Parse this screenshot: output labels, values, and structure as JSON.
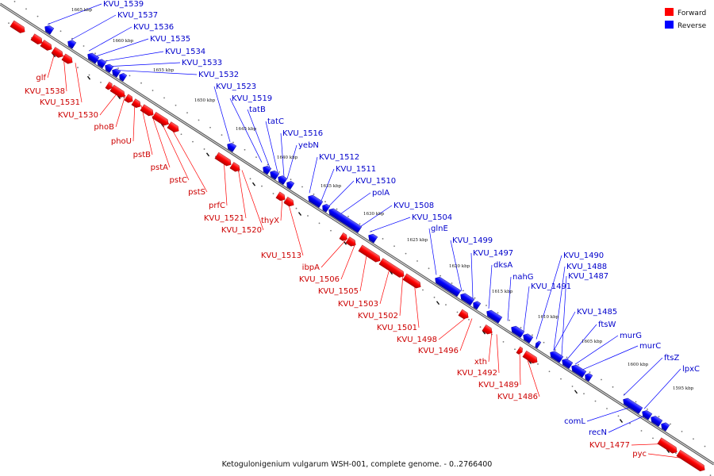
{
  "caption": "Ketogulonigenium vulgarum WSH-001, complete genome. - 0..2766400",
  "legend": [
    {
      "label": "Forward",
      "color": "#ff0000"
    },
    {
      "label": "Reverse",
      "color": "#0000ff"
    }
  ],
  "colors": {
    "forward": "#ff0000",
    "reverse": "#0000ff",
    "forward_label": "#cc0000",
    "reverse_label": "#0000cc",
    "backbone": "#888888"
  },
  "scale_ticks": [
    "1665 kbp",
    "1660 kbp",
    "1655 kbp",
    "1650 kbp",
    "1645 kbp",
    "1640 kbp",
    "1635 kbp",
    "1630 kbp",
    "1625 kbp",
    "1620 kbp",
    "1615 kbp",
    "1610 kbp",
    "1605 kbp",
    "1600 kbp",
    "1595 kbp"
  ],
  "forward_labels": [
    "glf",
    "KVU_1538",
    "KVU_1531",
    "KVU_1530",
    "phoB",
    "phoU",
    "pstB",
    "pstA",
    "pstC",
    "pstS",
    "prfC",
    "KVU_1521",
    "KVU_1520",
    "thyX",
    "KVU_1513",
    "ibpA",
    "KVU_1506",
    "KVU_1505",
    "KVU_1503",
    "KVU_1502",
    "KVU_1501",
    "KVU_1498",
    "KVU_1496",
    "xth",
    "KVU_1492",
    "KVU_1489",
    "KVU_1486",
    "KVU_1477",
    "pyc"
  ],
  "reverse_labels": [
    "KVU_1539",
    "KVU_1537",
    "KVU_1536",
    "KVU_1535",
    "KVU_1534",
    "KVU_1533",
    "KVU_1532",
    "KVU_1523",
    "KVU_1519",
    "tatB",
    "tatC",
    "KVU_1516",
    "yebN",
    "KVU_1512",
    "KVU_1511",
    "KVU_1510",
    "polA",
    "KVU_1508",
    "KVU_1504",
    "glnE",
    "KVU_1499",
    "KVU_1497",
    "dksA",
    "nahG",
    "KVU_1491",
    "KVU_1490",
    "KVU_1488",
    "KVU_1487",
    "KVU_1485",
    "ftsW",
    "murG",
    "murC",
    "ftsZ",
    "lpxC",
    "comL",
    "recN"
  ]
}
